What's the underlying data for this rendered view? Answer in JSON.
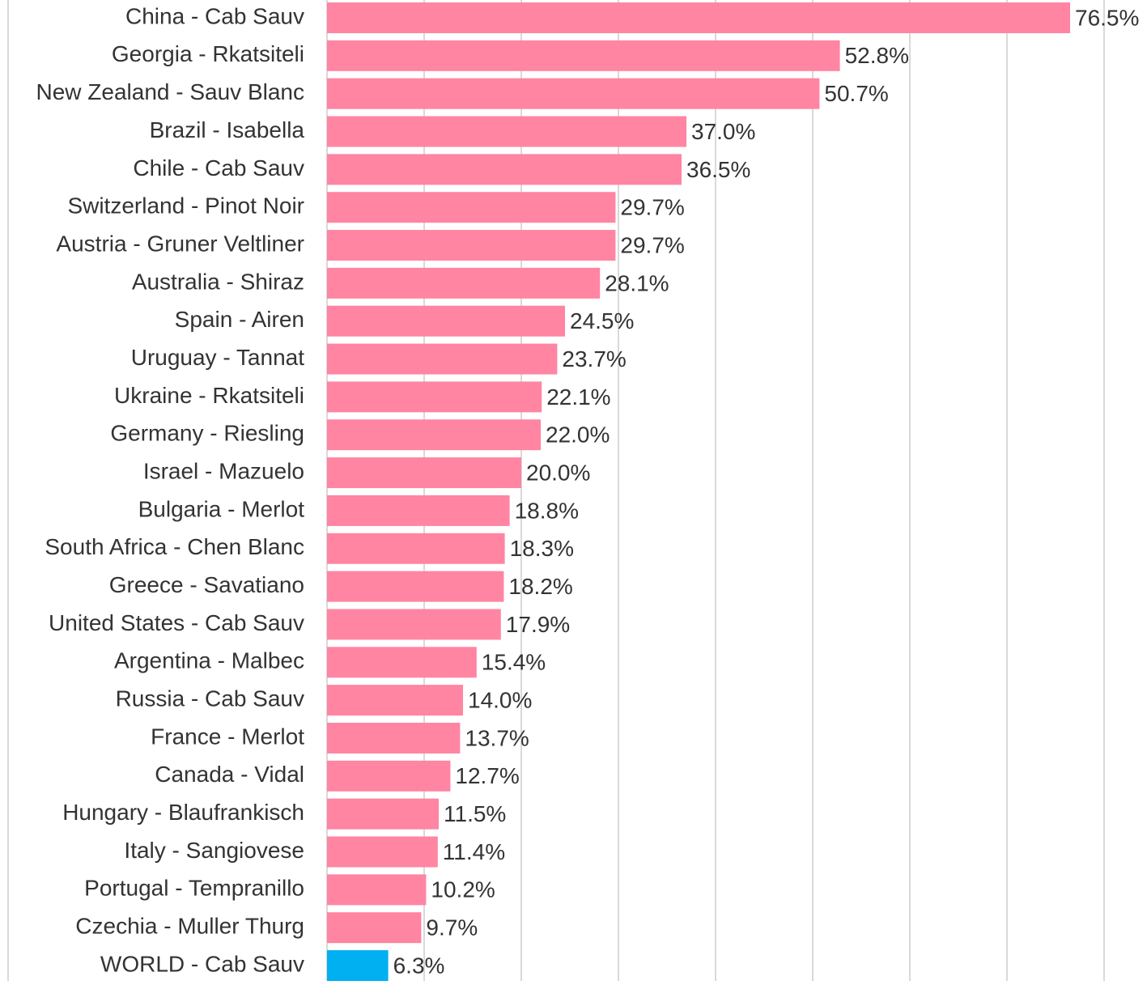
{
  "chart_data": {
    "type": "bar",
    "orientation": "horizontal",
    "categories": [
      "China - Cab Sauv",
      "Georgia - Rkatsiteli",
      "New Zealand - Sauv Blanc",
      "Brazil - Isabella",
      "Chile - Cab Sauv",
      "Switzerland - Pinot Noir",
      "Austria - Gruner Veltliner",
      "Australia - Shiraz",
      "Spain - Airen",
      "Uruguay - Tannat",
      "Ukraine - Rkatsiteli",
      "Germany - Riesling",
      "Israel - Mazuelo",
      "Bulgaria - Merlot",
      "South Africa - Chen Blanc",
      "Greece - Savatiano",
      "United States - Cab Sauv",
      "Argentina - Malbec",
      "Russia - Cab Sauv",
      "France - Merlot",
      "Canada - Vidal",
      "Hungary - Blaufrankisch",
      "Italy - Sangiovese",
      "Portugal - Tempranillo",
      "Czechia - Muller Thurg",
      "WORLD - Cab Sauv"
    ],
    "values": [
      76.5,
      52.8,
      50.7,
      37.0,
      36.5,
      29.7,
      29.7,
      28.1,
      24.5,
      23.7,
      22.1,
      22.0,
      20.0,
      18.8,
      18.3,
      18.2,
      17.9,
      15.4,
      14.0,
      13.7,
      12.7,
      11.5,
      11.4,
      10.2,
      9.7,
      6.3
    ],
    "value_labels": [
      "76.5%",
      "52.8%",
      "50.7%",
      "37.0%",
      "36.5%",
      "29.7%",
      "29.7%",
      "28.1%",
      "24.5%",
      "23.7%",
      "22.1%",
      "22.0%",
      "20.0%",
      "18.8%",
      "18.3%",
      "18.2%",
      "17.9%",
      "15.4%",
      "14.0%",
      "13.7%",
      "12.7%",
      "11.5%",
      "11.4%",
      "10.2%",
      "9.7%",
      "6.3%"
    ],
    "colors": [
      "#ff85a2",
      "#ff85a2",
      "#ff85a2",
      "#ff85a2",
      "#ff85a2",
      "#ff85a2",
      "#ff85a2",
      "#ff85a2",
      "#ff85a2",
      "#ff85a2",
      "#ff85a2",
      "#ff85a2",
      "#ff85a2",
      "#ff85a2",
      "#ff85a2",
      "#ff85a2",
      "#ff85a2",
      "#ff85a2",
      "#ff85a2",
      "#ff85a2",
      "#ff85a2",
      "#ff85a2",
      "#ff85a2",
      "#ff85a2",
      "#ff85a2",
      "#00b0f0"
    ],
    "xlim": [
      0,
      80
    ],
    "xticks": [
      0,
      10,
      20,
      30,
      40,
      50,
      60,
      70,
      80
    ],
    "grid": true
  }
}
